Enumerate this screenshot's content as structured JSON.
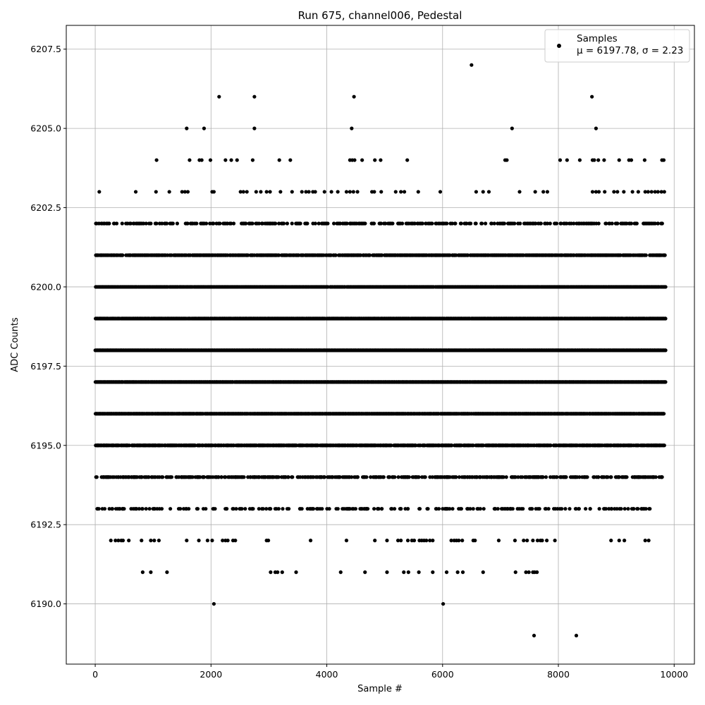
{
  "chart_data": {
    "type": "scatter",
    "title": "Run 675, channel006, Pedestal",
    "xlabel": "Sample #",
    "ylabel": "ADC Counts",
    "xlim": [
      -500,
      10350
    ],
    "ylim": [
      6188.1,
      6208.25
    ],
    "xticks": [
      0,
      2000,
      4000,
      6000,
      8000,
      10000
    ],
    "xtick_labels": [
      "0",
      "2000",
      "4000",
      "6000",
      "8000",
      "10000"
    ],
    "yticks": [
      6190.0,
      6192.5,
      6195.0,
      6197.5,
      6200.0,
      6202.5,
      6205.0,
      6207.5
    ],
    "ytick_labels": [
      "6190.0",
      "6192.5",
      "6195.0",
      "6197.5",
      "6200.0",
      "6202.5",
      "6205.0",
      "6207.5"
    ],
    "grid": true,
    "legend": {
      "placement": "top-right",
      "label": "Samples",
      "stats": "μ = 6197.78, σ = 2.23"
    },
    "marker_color": "#000000",
    "series": [
      {
        "name": "Samples",
        "dense_levels": [
          {
            "y": 6202,
            "x_start": 0,
            "x_end": 9850,
            "density": 0.35
          },
          {
            "y": 6201,
            "x_start": 0,
            "x_end": 9850,
            "density": 0.7
          },
          {
            "y": 6200,
            "x_start": 0,
            "x_end": 9850,
            "density": 0.92
          },
          {
            "y": 6199,
            "x_start": 0,
            "x_end": 9850,
            "density": 0.97
          },
          {
            "y": 6198,
            "x_start": 0,
            "x_end": 9850,
            "density": 1.0
          },
          {
            "y": 6197,
            "x_start": 0,
            "x_end": 9850,
            "density": 0.99
          },
          {
            "y": 6196,
            "x_start": 0,
            "x_end": 9820,
            "density": 0.92
          },
          {
            "y": 6195,
            "x_start": 0,
            "x_end": 9820,
            "density": 0.7
          },
          {
            "y": 6194,
            "x_start": 0,
            "x_end": 9820,
            "density": 0.45
          },
          {
            "y": 6193,
            "x_start": 0,
            "x_end": 9650,
            "density": 0.22
          }
        ],
        "points": [
          [
            6500,
            6207
          ],
          [
            2140,
            6206
          ],
          [
            2750,
            6206
          ],
          [
            4470,
            6206
          ],
          [
            8580,
            6206
          ],
          [
            1580,
            6205
          ],
          [
            1880,
            6205
          ],
          [
            2750,
            6205
          ],
          [
            4430,
            6205
          ],
          [
            7200,
            6205
          ],
          [
            8650,
            6205
          ],
          [
            1060,
            6204
          ],
          [
            1630,
            6204
          ],
          [
            1800,
            6204
          ],
          [
            1840,
            6204
          ],
          [
            1990,
            6204
          ],
          [
            2250,
            6204
          ],
          [
            2350,
            6204
          ],
          [
            2450,
            6204
          ],
          [
            2720,
            6204
          ],
          [
            3180,
            6204
          ],
          [
            3370,
            6204
          ],
          [
            4400,
            6204
          ],
          [
            4440,
            6204
          ],
          [
            4480,
            6204
          ],
          [
            4610,
            6204
          ],
          [
            4830,
            6204
          ],
          [
            4930,
            6204
          ],
          [
            5390,
            6204
          ],
          [
            7080,
            6204
          ],
          [
            7110,
            6204
          ],
          [
            8030,
            6204
          ],
          [
            8150,
            6204
          ],
          [
            8370,
            6204
          ],
          [
            8590,
            6204
          ],
          [
            8620,
            6204
          ],
          [
            8690,
            6204
          ],
          [
            8790,
            6204
          ],
          [
            9050,
            6204
          ],
          [
            9220,
            6204
          ],
          [
            9260,
            6204
          ],
          [
            9490,
            6204
          ],
          [
            9790,
            6204
          ],
          [
            9820,
            6204
          ],
          [
            70,
            6203
          ],
          [
            700,
            6203
          ],
          [
            1050,
            6203
          ],
          [
            1280,
            6203
          ],
          [
            1500,
            6203
          ],
          [
            1550,
            6203
          ],
          [
            1600,
            6203
          ],
          [
            2020,
            6203
          ],
          [
            2050,
            6203
          ],
          [
            2510,
            6203
          ],
          [
            2560,
            6203
          ],
          [
            2620,
            6203
          ],
          [
            2780,
            6203
          ],
          [
            2860,
            6203
          ],
          [
            2960,
            6203
          ],
          [
            3020,
            6203
          ],
          [
            3200,
            6203
          ],
          [
            3400,
            6203
          ],
          [
            3570,
            6203
          ],
          [
            3640,
            6203
          ],
          [
            3690,
            6203
          ],
          [
            3760,
            6203
          ],
          [
            3800,
            6203
          ],
          [
            3960,
            6203
          ],
          [
            4080,
            6203
          ],
          [
            4190,
            6203
          ],
          [
            4340,
            6203
          ],
          [
            4400,
            6203
          ],
          [
            4460,
            6203
          ],
          [
            4530,
            6203
          ],
          [
            4780,
            6203
          ],
          [
            4820,
            6203
          ],
          [
            4940,
            6203
          ],
          [
            5190,
            6203
          ],
          [
            5280,
            6203
          ],
          [
            5340,
            6203
          ],
          [
            5580,
            6203
          ],
          [
            5960,
            6203
          ],
          [
            6580,
            6203
          ],
          [
            6700,
            6203
          ],
          [
            6800,
            6203
          ],
          [
            7330,
            6203
          ],
          [
            7600,
            6203
          ],
          [
            7740,
            6203
          ],
          [
            7810,
            6203
          ],
          [
            8590,
            6203
          ],
          [
            8650,
            6203
          ],
          [
            8700,
            6203
          ],
          [
            8800,
            6203
          ],
          [
            8960,
            6203
          ],
          [
            9020,
            6203
          ],
          [
            9130,
            6203
          ],
          [
            9280,
            6203
          ],
          [
            9380,
            6203
          ],
          [
            9500,
            6203
          ],
          [
            9550,
            6203
          ],
          [
            9610,
            6203
          ],
          [
            9670,
            6203
          ],
          [
            9720,
            6203
          ],
          [
            9780,
            6203
          ],
          [
            9830,
            6203
          ],
          [
            270,
            6192
          ],
          [
            350,
            6192
          ],
          [
            400,
            6192
          ],
          [
            450,
            6192
          ],
          [
            480,
            6192
          ],
          [
            580,
            6192
          ],
          [
            800,
            6192
          ],
          [
            960,
            6192
          ],
          [
            1020,
            6192
          ],
          [
            1100,
            6192
          ],
          [
            1580,
            6192
          ],
          [
            1790,
            6192
          ],
          [
            1940,
            6192
          ],
          [
            2020,
            6192
          ],
          [
            2200,
            6192
          ],
          [
            2250,
            6192
          ],
          [
            2290,
            6192
          ],
          [
            2380,
            6192
          ],
          [
            2420,
            6192
          ],
          [
            2960,
            6192
          ],
          [
            2990,
            6192
          ],
          [
            3720,
            6192
          ],
          [
            4340,
            6192
          ],
          [
            4830,
            6192
          ],
          [
            5040,
            6192
          ],
          [
            5230,
            6192
          ],
          [
            5280,
            6192
          ],
          [
            5400,
            6192
          ],
          [
            5470,
            6192
          ],
          [
            5510,
            6192
          ],
          [
            5600,
            6192
          ],
          [
            5640,
            6192
          ],
          [
            5680,
            6192
          ],
          [
            5720,
            6192
          ],
          [
            5780,
            6192
          ],
          [
            5830,
            6192
          ],
          [
            6150,
            6192
          ],
          [
            6200,
            6192
          ],
          [
            6240,
            6192
          ],
          [
            6280,
            6192
          ],
          [
            6340,
            6192
          ],
          [
            6530,
            6192
          ],
          [
            6560,
            6192
          ],
          [
            6970,
            6192
          ],
          [
            7250,
            6192
          ],
          [
            7400,
            6192
          ],
          [
            7460,
            6192
          ],
          [
            7560,
            6192
          ],
          [
            7640,
            6192
          ],
          [
            7690,
            6192
          ],
          [
            7720,
            6192
          ],
          [
            7800,
            6192
          ],
          [
            7940,
            6192
          ],
          [
            8910,
            6192
          ],
          [
            9050,
            6192
          ],
          [
            9140,
            6192
          ],
          [
            9500,
            6192
          ],
          [
            9560,
            6192
          ],
          [
            820,
            6191
          ],
          [
            960,
            6191
          ],
          [
            1240,
            6191
          ],
          [
            3030,
            6191
          ],
          [
            3110,
            6191
          ],
          [
            3150,
            6191
          ],
          [
            3230,
            6191
          ],
          [
            3470,
            6191
          ],
          [
            4240,
            6191
          ],
          [
            4660,
            6191
          ],
          [
            5040,
            6191
          ],
          [
            5330,
            6191
          ],
          [
            5410,
            6191
          ],
          [
            5590,
            6191
          ],
          [
            5830,
            6191
          ],
          [
            6070,
            6191
          ],
          [
            6260,
            6191
          ],
          [
            6350,
            6191
          ],
          [
            6700,
            6191
          ],
          [
            7260,
            6191
          ],
          [
            7440,
            6191
          ],
          [
            7490,
            6191
          ],
          [
            7560,
            6191
          ],
          [
            7590,
            6191
          ],
          [
            7630,
            6191
          ],
          [
            2050,
            6190
          ],
          [
            6010,
            6190
          ],
          [
            7580,
            6189
          ],
          [
            8310,
            6189
          ]
        ]
      }
    ]
  }
}
